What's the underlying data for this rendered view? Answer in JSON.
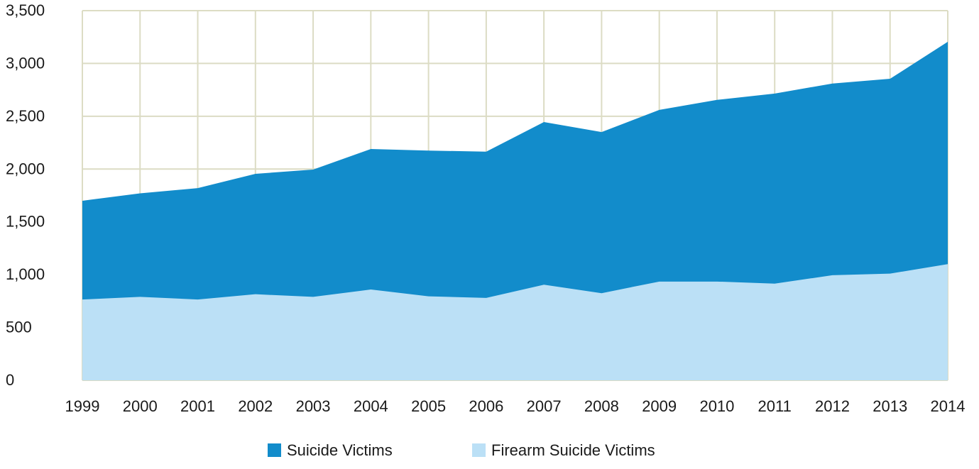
{
  "chart_data": {
    "type": "area",
    "stacked": false,
    "title": "",
    "xlabel": "",
    "ylabel": "",
    "x": [
      1999,
      2000,
      2001,
      2002,
      2003,
      2004,
      2005,
      2006,
      2007,
      2008,
      2009,
      2010,
      2011,
      2012,
      2013,
      2014
    ],
    "x_tick_labels": [
      "1999",
      "2000",
      "2001",
      "2002",
      "2003",
      "2004",
      "2005",
      "2006",
      "2007",
      "2008",
      "2009",
      "2010",
      "2011",
      "2012",
      "2013",
      "2014"
    ],
    "y_ticks": [
      0,
      500,
      1000,
      1500,
      2000,
      2500,
      3000,
      3500
    ],
    "y_tick_labels": [
      "0",
      "500",
      "1,000",
      "1,500",
      "2,000",
      "2,500",
      "3,000",
      "3,500"
    ],
    "ylim": [
      0,
      3500
    ],
    "grid": true,
    "legend_position": "bottom-center",
    "series": [
      {
        "name": "Suicide Victims",
        "color": "#128ccb",
        "values": [
          1700,
          1770,
          1820,
          1955,
          1995,
          2190,
          2175,
          2165,
          2445,
          2350,
          2560,
          2655,
          2715,
          2810,
          2855,
          3205
        ]
      },
      {
        "name": "Firearm Suicide Victims",
        "color": "#bbe0f6",
        "values": [
          765,
          790,
          765,
          815,
          790,
          860,
          795,
          780,
          905,
          825,
          935,
          935,
          915,
          995,
          1010,
          1100
        ]
      }
    ]
  }
}
